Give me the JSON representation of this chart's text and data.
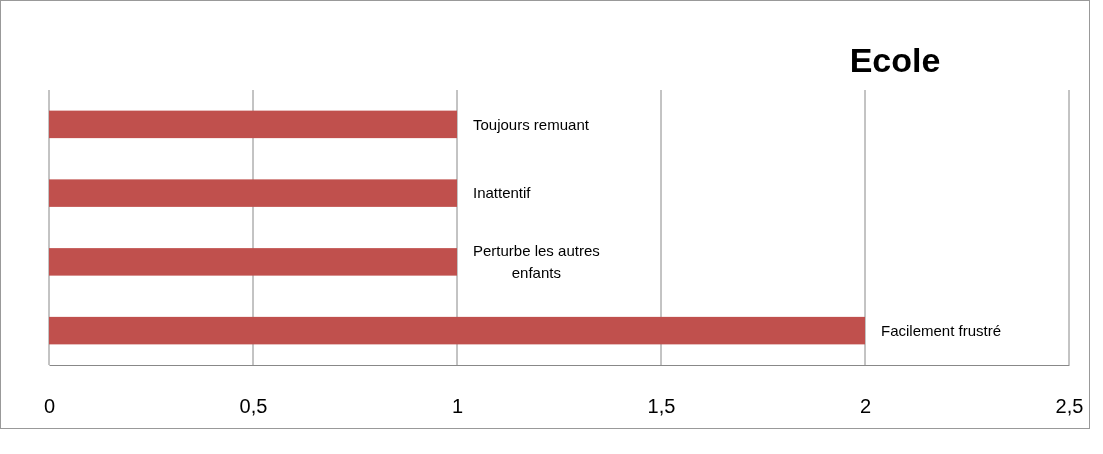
{
  "chart_data": {
    "type": "bar",
    "orientation": "horizontal",
    "title": "Ecole",
    "categories": [
      "Toujours remuant",
      "Inattentif",
      "Perturbe les autres enfants",
      "Facilement frustré"
    ],
    "values": [
      1,
      1,
      1,
      2
    ],
    "color": "#c0504d",
    "xlim": [
      0,
      2.5
    ],
    "xticks": [
      0,
      {
        "value": 0.5,
        "label": "0,5"
      },
      1,
      {
        "value": 1.5,
        "label": "1,5"
      },
      2,
      {
        "value": 2.5,
        "label": "2,5"
      }
    ],
    "grid": "x",
    "tick_labels": "x"
  }
}
